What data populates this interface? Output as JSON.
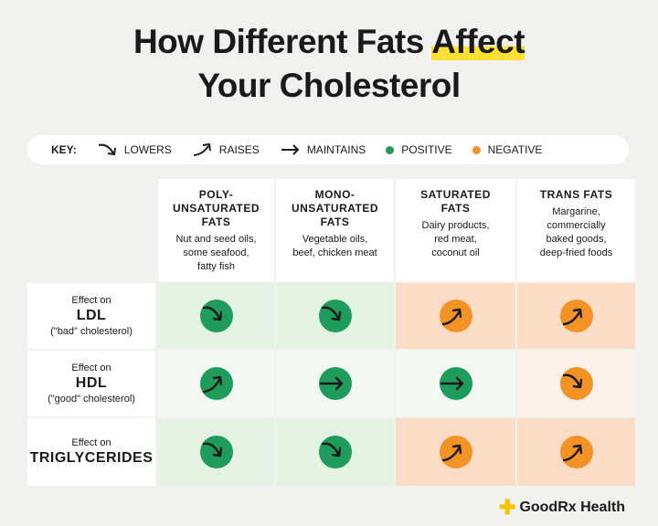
{
  "title": {
    "line1_pre": "How Different Fats ",
    "line1_hl": "Affect",
    "line2": "Your Cholesterol"
  },
  "key": {
    "label": "KEY:",
    "lowers": "LOWERS",
    "raises": "RAISES",
    "maintains": "MAINTAINS",
    "positive": "POSITIVE",
    "negative": "NEGATIVE",
    "positive_color": "#1d9c5c",
    "negative_color": "#f39325"
  },
  "columns": [
    {
      "name": "POLY-\nUNSATURATED\nFATS",
      "desc": "Nut and seed oils,\nsome seafood,\nfatty fish"
    },
    {
      "name": "MONO-\nUNSATURATED\nFATS",
      "desc": "Vegetable oils,\nbeef, chicken meat"
    },
    {
      "name": "SATURATED\nFATS",
      "desc": "Dairy products,\nred meat,\ncoconut oil"
    },
    {
      "name": "TRANS FATS",
      "desc": "Margarine,\ncommercially\nbaked goods,\ndeep-fried foods"
    }
  ],
  "rows": [
    {
      "prefix": "Effect on",
      "name": "LDL",
      "note": "(\"bad\" cholesterol)"
    },
    {
      "prefix": "Effect on",
      "name": "HDL",
      "note": "(\"good\" cholesterol)"
    },
    {
      "prefix": "Effect on",
      "name": "TRIGLYCERIDES",
      "note": ""
    }
  ],
  "effects": [
    [
      {
        "dir": "lowers",
        "tone": "positive"
      },
      {
        "dir": "lowers",
        "tone": "positive"
      },
      {
        "dir": "raises",
        "tone": "negative"
      },
      {
        "dir": "raises",
        "tone": "negative"
      }
    ],
    [
      {
        "dir": "raises",
        "tone": "positive"
      },
      {
        "dir": "maintains",
        "tone": "positive"
      },
      {
        "dir": "maintains",
        "tone": "positive"
      },
      {
        "dir": "lowers",
        "tone": "negative"
      }
    ],
    [
      {
        "dir": "lowers",
        "tone": "positive"
      },
      {
        "dir": "lowers",
        "tone": "positive"
      },
      {
        "dir": "raises",
        "tone": "negative"
      },
      {
        "dir": "raises",
        "tone": "negative"
      }
    ]
  ],
  "brand": {
    "name": "GoodRx Health"
  }
}
